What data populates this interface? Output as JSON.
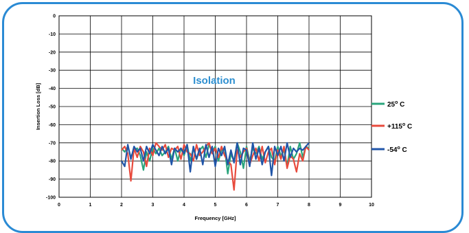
{
  "chart_data": {
    "type": "line",
    "xlabel": "Frequency [GHz]",
    "ylabel": "Insertion Loss [dB]",
    "annotation": "Isolation",
    "xlim": [
      0,
      10
    ],
    "ylim": [
      -100,
      0
    ],
    "xticks": [
      "0",
      "1",
      "2",
      "3",
      "4",
      "5",
      "6",
      "7",
      "8",
      "9",
      "10"
    ],
    "yticks": [
      "0",
      "-10",
      "-20",
      "-30",
      "-40",
      "-50",
      "-60",
      "-70",
      "-80",
      "-90",
      "-100"
    ],
    "grid": true,
    "legend_position": "right",
    "series": [
      {
        "name_base": "25",
        "name_sup": "o",
        "name_tail": "C",
        "color": "#2aa57c",
        "x": [
          2.0,
          2.1,
          2.2,
          2.3,
          2.4,
          2.5,
          2.6,
          2.7,
          2.8,
          2.9,
          3.0,
          3.1,
          3.2,
          3.3,
          3.4,
          3.5,
          3.6,
          3.7,
          3.8,
          3.9,
          4.0,
          4.1,
          4.2,
          4.3,
          4.4,
          4.5,
          4.6,
          4.7,
          4.8,
          4.9,
          5.0,
          5.1,
          5.2,
          5.3,
          5.4,
          5.5,
          5.6,
          5.7,
          5.8,
          5.9,
          6.0,
          6.1,
          6.2,
          6.3,
          6.4,
          6.5,
          6.6,
          6.7,
          6.8,
          6.9,
          7.0,
          7.1,
          7.2,
          7.3,
          7.4,
          7.5,
          7.6,
          7.7,
          7.8,
          7.9,
          8.0
        ],
        "values": [
          -73,
          -75,
          -72,
          -78,
          -74,
          -73,
          -77,
          -85,
          -75,
          -80,
          -73,
          -76,
          -73,
          -77,
          -75,
          -72,
          -79,
          -73,
          -80,
          -73,
          -77,
          -71,
          -80,
          -73,
          -79,
          -74,
          -72,
          -78,
          -71,
          -75,
          -72,
          -80,
          -74,
          -73,
          -87,
          -76,
          -80,
          -70,
          -75,
          -84,
          -72,
          -80,
          -73,
          -76,
          -72,
          -79,
          -75,
          -72,
          -78,
          -80,
          -72,
          -77,
          -74,
          -83,
          -72,
          -79,
          -76,
          -70,
          -78,
          -72,
          -73
        ]
      },
      {
        "name_base": "+115",
        "name_sup": "o",
        "name_tail": "C",
        "color": "#e84a3c",
        "x": [
          2.0,
          2.1,
          2.2,
          2.3,
          2.4,
          2.5,
          2.6,
          2.7,
          2.8,
          2.9,
          3.0,
          3.1,
          3.2,
          3.3,
          3.4,
          3.5,
          3.6,
          3.7,
          3.8,
          3.9,
          4.0,
          4.1,
          4.2,
          4.3,
          4.4,
          4.5,
          4.6,
          4.7,
          4.8,
          4.9,
          5.0,
          5.1,
          5.2,
          5.3,
          5.4,
          5.5,
          5.6,
          5.7,
          5.8,
          5.9,
          6.0,
          6.1,
          6.2,
          6.3,
          6.4,
          6.5,
          6.6,
          6.7,
          6.8,
          6.9,
          7.0,
          7.1,
          7.2,
          7.3,
          7.4,
          7.5,
          7.6,
          7.7,
          7.8,
          7.9,
          8.0
        ],
        "values": [
          -74,
          -72,
          -76,
          -91,
          -73,
          -78,
          -72,
          -75,
          -83,
          -73,
          -77,
          -70,
          -72,
          -74,
          -71,
          -78,
          -73,
          -74,
          -72,
          -79,
          -71,
          -75,
          -76,
          -80,
          -71,
          -77,
          -75,
          -72,
          -70,
          -76,
          -73,
          -78,
          -72,
          -77,
          -80,
          -82,
          -96,
          -74,
          -78,
          -75,
          -73,
          -82,
          -77,
          -73,
          -80,
          -72,
          -81,
          -75,
          -73,
          -82,
          -74,
          -79,
          -72,
          -84,
          -77,
          -79,
          -86,
          -76,
          -80,
          -72,
          -74
        ]
      },
      {
        "name_base": "-54",
        "name_sup": "o",
        "name_tail": "C",
        "color": "#2055a8",
        "x": [
          2.0,
          2.1,
          2.2,
          2.3,
          2.4,
          2.5,
          2.6,
          2.7,
          2.8,
          2.9,
          3.0,
          3.1,
          3.2,
          3.3,
          3.4,
          3.5,
          3.6,
          3.7,
          3.8,
          3.9,
          4.0,
          4.1,
          4.2,
          4.3,
          4.4,
          4.5,
          4.6,
          4.7,
          4.8,
          4.9,
          5.0,
          5.1,
          5.2,
          5.3,
          5.4,
          5.5,
          5.6,
          5.7,
          5.8,
          5.9,
          6.0,
          6.1,
          6.2,
          6.3,
          6.4,
          6.5,
          6.6,
          6.7,
          6.8,
          6.9,
          7.0,
          7.1,
          7.2,
          7.3,
          7.4,
          7.5,
          7.6,
          7.7,
          7.8,
          7.9,
          8.0
        ],
        "values": [
          -80,
          -83,
          -71,
          -79,
          -72,
          -75,
          -73,
          -80,
          -72,
          -76,
          -71,
          -74,
          -77,
          -72,
          -76,
          -73,
          -82,
          -73,
          -75,
          -73,
          -76,
          -71,
          -86,
          -72,
          -79,
          -73,
          -82,
          -71,
          -78,
          -72,
          -83,
          -73,
          -77,
          -72,
          -82,
          -74,
          -81,
          -70,
          -82,
          -73,
          -74,
          -83,
          -70,
          -79,
          -73,
          -82,
          -75,
          -72,
          -88,
          -72,
          -77,
          -72,
          -80,
          -70,
          -78,
          -73,
          -75,
          -73,
          -74,
          -72,
          -70
        ]
      }
    ]
  }
}
